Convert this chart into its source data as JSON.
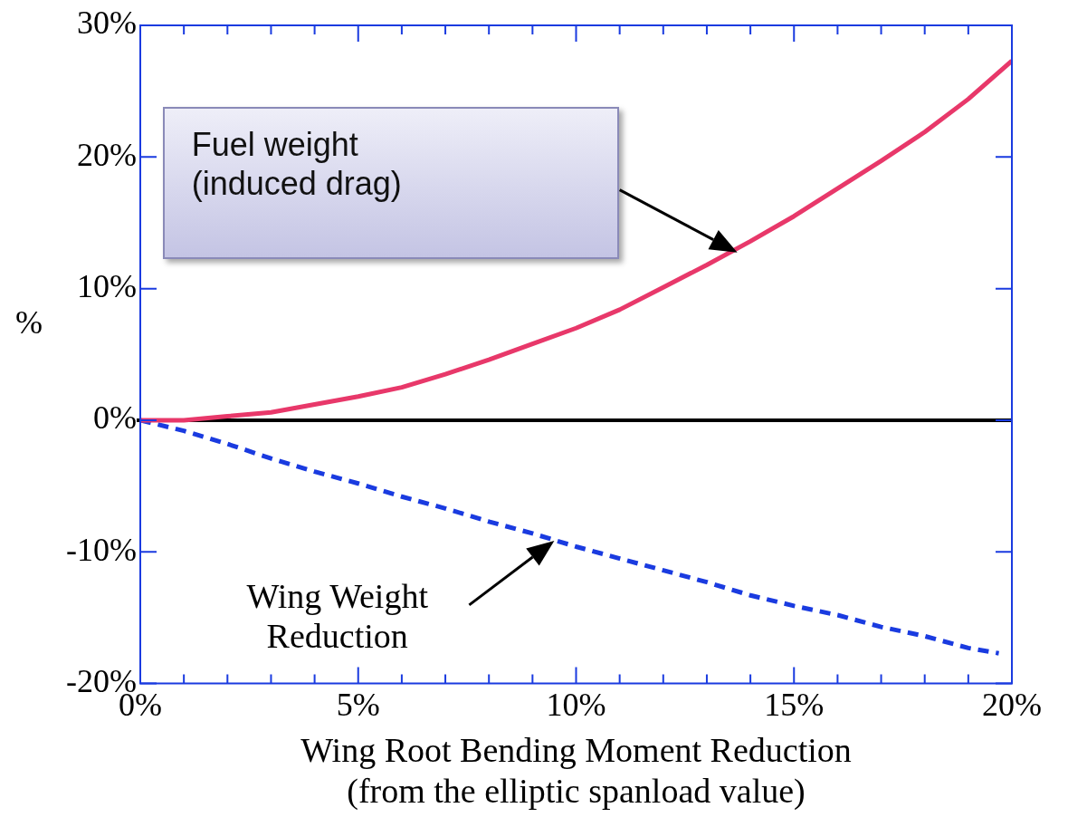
{
  "chart_data": {
    "type": "line",
    "xlabel": "Wing Root Bending Moment Reduction\n(from the elliptic spanload value)",
    "ylabel": "%",
    "x": [
      0,
      1,
      2,
      3,
      4,
      5,
      6,
      7,
      8,
      9,
      10,
      11,
      12,
      13,
      14,
      15,
      16,
      17,
      18,
      19,
      20
    ],
    "series": [
      {
        "color": "#e8386a",
        "line_style": "solid",
        "values": [
          0,
          0,
          0.3,
          0.6,
          1.2,
          1.8,
          2.5,
          3.5,
          4.6,
          5.8,
          7.0,
          8.4,
          10.1,
          11.8,
          13.6,
          15.5,
          17.6,
          19.7,
          21.9,
          24.4,
          27.3
        ]
      },
      {
        "color": "#1a3be0",
        "line_style": "dashed",
        "x": [
          0,
          1,
          2,
          3,
          4,
          5,
          6,
          7,
          8,
          9,
          10,
          11,
          12,
          13,
          14,
          15,
          16,
          17,
          18,
          19,
          19.7
        ],
        "values": [
          0,
          -0.8,
          -1.8,
          -2.9,
          -3.9,
          -4.8,
          -5.8,
          -6.7,
          -7.7,
          -8.6,
          -9.6,
          -10.5,
          -11.4,
          -12.3,
          -13.3,
          -14.1,
          -14.8,
          -15.7,
          -16.4,
          -17.3,
          -17.7
        ]
      }
    ],
    "xlim": [
      0,
      20
    ],
    "ylim": [
      -20,
      30
    ],
    "xticks": [
      {
        "value": 0,
        "label": "0%"
      },
      {
        "value": 1,
        "label": null
      },
      {
        "value": 2,
        "label": null
      },
      {
        "value": 3,
        "label": null
      },
      {
        "value": 4,
        "label": null
      },
      {
        "value": 5,
        "label": "5%"
      },
      {
        "value": 6,
        "label": null
      },
      {
        "value": 7,
        "label": null
      },
      {
        "value": 8,
        "label": null
      },
      {
        "value": 9,
        "label": null
      },
      {
        "value": 10,
        "label": "10%"
      },
      {
        "value": 11,
        "label": null
      },
      {
        "value": 12,
        "label": null
      },
      {
        "value": 13,
        "label": null
      },
      {
        "value": 14,
        "label": null
      },
      {
        "value": 15,
        "label": "15%"
      },
      {
        "value": 16,
        "label": null
      },
      {
        "value": 17,
        "label": null
      },
      {
        "value": 18,
        "label": null
      },
      {
        "value": 19,
        "label": null
      },
      {
        "value": 20,
        "label": "20%"
      }
    ],
    "yticks": [
      {
        "value": -20,
        "label": "-20%"
      },
      {
        "value": -10,
        "label": "-10%"
      },
      {
        "value": 0,
        "label": "0%"
      },
      {
        "value": 10,
        "label": "10%"
      },
      {
        "value": 20,
        "label": "20%"
      },
      {
        "value": 30,
        "label": "30%"
      }
    ],
    "ref_lines": [
      {
        "axis": "y",
        "value": 0,
        "color": "#000000"
      }
    ],
    "annotations": [
      "Fuel weight\n(induced drag)",
      "Wing Weight\nReduction"
    ],
    "grid": false,
    "legend": false,
    "marker": "none"
  }
}
